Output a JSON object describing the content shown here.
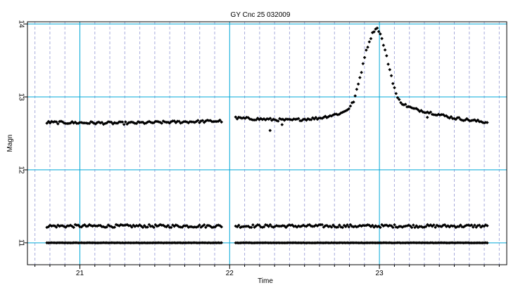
{
  "chart_data": {
    "type": "scatter",
    "title": "GY Cnc 25 032009",
    "xlabel": "Time",
    "ylabel": "Magn",
    "xlim": [
      20.65,
      23.85
    ],
    "ylim": [
      14.03,
      10.7
    ],
    "y_inverted": true,
    "x_major_ticks": [
      21,
      22,
      23
    ],
    "y_major_ticks": [
      11,
      12,
      13,
      14
    ],
    "x_tick_labels": [
      "21",
      "22",
      "23"
    ],
    "y_tick_labels": [
      "11",
      "12",
      "13",
      "14"
    ],
    "x_minor_step": 0.1,
    "y_minor_step": 0.2,
    "grid": true,
    "colors": {
      "background": "#ffffff",
      "major_grid": "#00a8d8",
      "minor_grid": "#a8acdc",
      "marker": "#000000",
      "frame": "#000000"
    },
    "marker": "diamond",
    "series": [
      {
        "x_start": 20.78,
        "x_end": 23.72,
        "gap": [
          21.95,
          22.03
        ],
        "step": 0.0105,
        "profile": [
          [
            20.78,
            11.0
          ],
          [
            23.72,
            11.0
          ]
        ],
        "noise": 0.002
      },
      {
        "x_start": 20.78,
        "x_end": 23.72,
        "gap": [
          21.95,
          22.03
        ],
        "step": 0.0105,
        "profile": [
          [
            20.78,
            11.23
          ],
          [
            23.72,
            11.23
          ]
        ],
        "noise": 0.02
      },
      {
        "x_start": 20.78,
        "x_end": 23.72,
        "gap": [
          21.95,
          22.03
        ],
        "step": 0.0105,
        "profile": [
          [
            20.78,
            12.65
          ],
          [
            21.3,
            12.64
          ],
          [
            21.95,
            12.67
          ],
          [
            22.03,
            12.71
          ],
          [
            22.4,
            12.68
          ],
          [
            22.6,
            12.71
          ],
          [
            22.75,
            12.78
          ],
          [
            22.8,
            12.85
          ],
          [
            22.83,
            12.95
          ],
          [
            22.85,
            13.1
          ],
          [
            22.88,
            13.35
          ],
          [
            22.9,
            13.55
          ],
          [
            22.93,
            13.75
          ],
          [
            22.96,
            13.9
          ],
          [
            22.98,
            13.95
          ],
          [
            23.0,
            13.9
          ],
          [
            23.03,
            13.7
          ],
          [
            23.06,
            13.45
          ],
          [
            23.09,
            13.2
          ],
          [
            23.12,
            12.98
          ],
          [
            23.16,
            12.9
          ],
          [
            23.22,
            12.84
          ],
          [
            23.35,
            12.78
          ],
          [
            23.5,
            12.71
          ],
          [
            23.72,
            12.65
          ]
        ],
        "noise": 0.018,
        "outliers": [
          [
            22.27,
            12.54
          ],
          [
            22.35,
            12.62
          ],
          [
            23.32,
            12.72
          ]
        ]
      }
    ]
  }
}
